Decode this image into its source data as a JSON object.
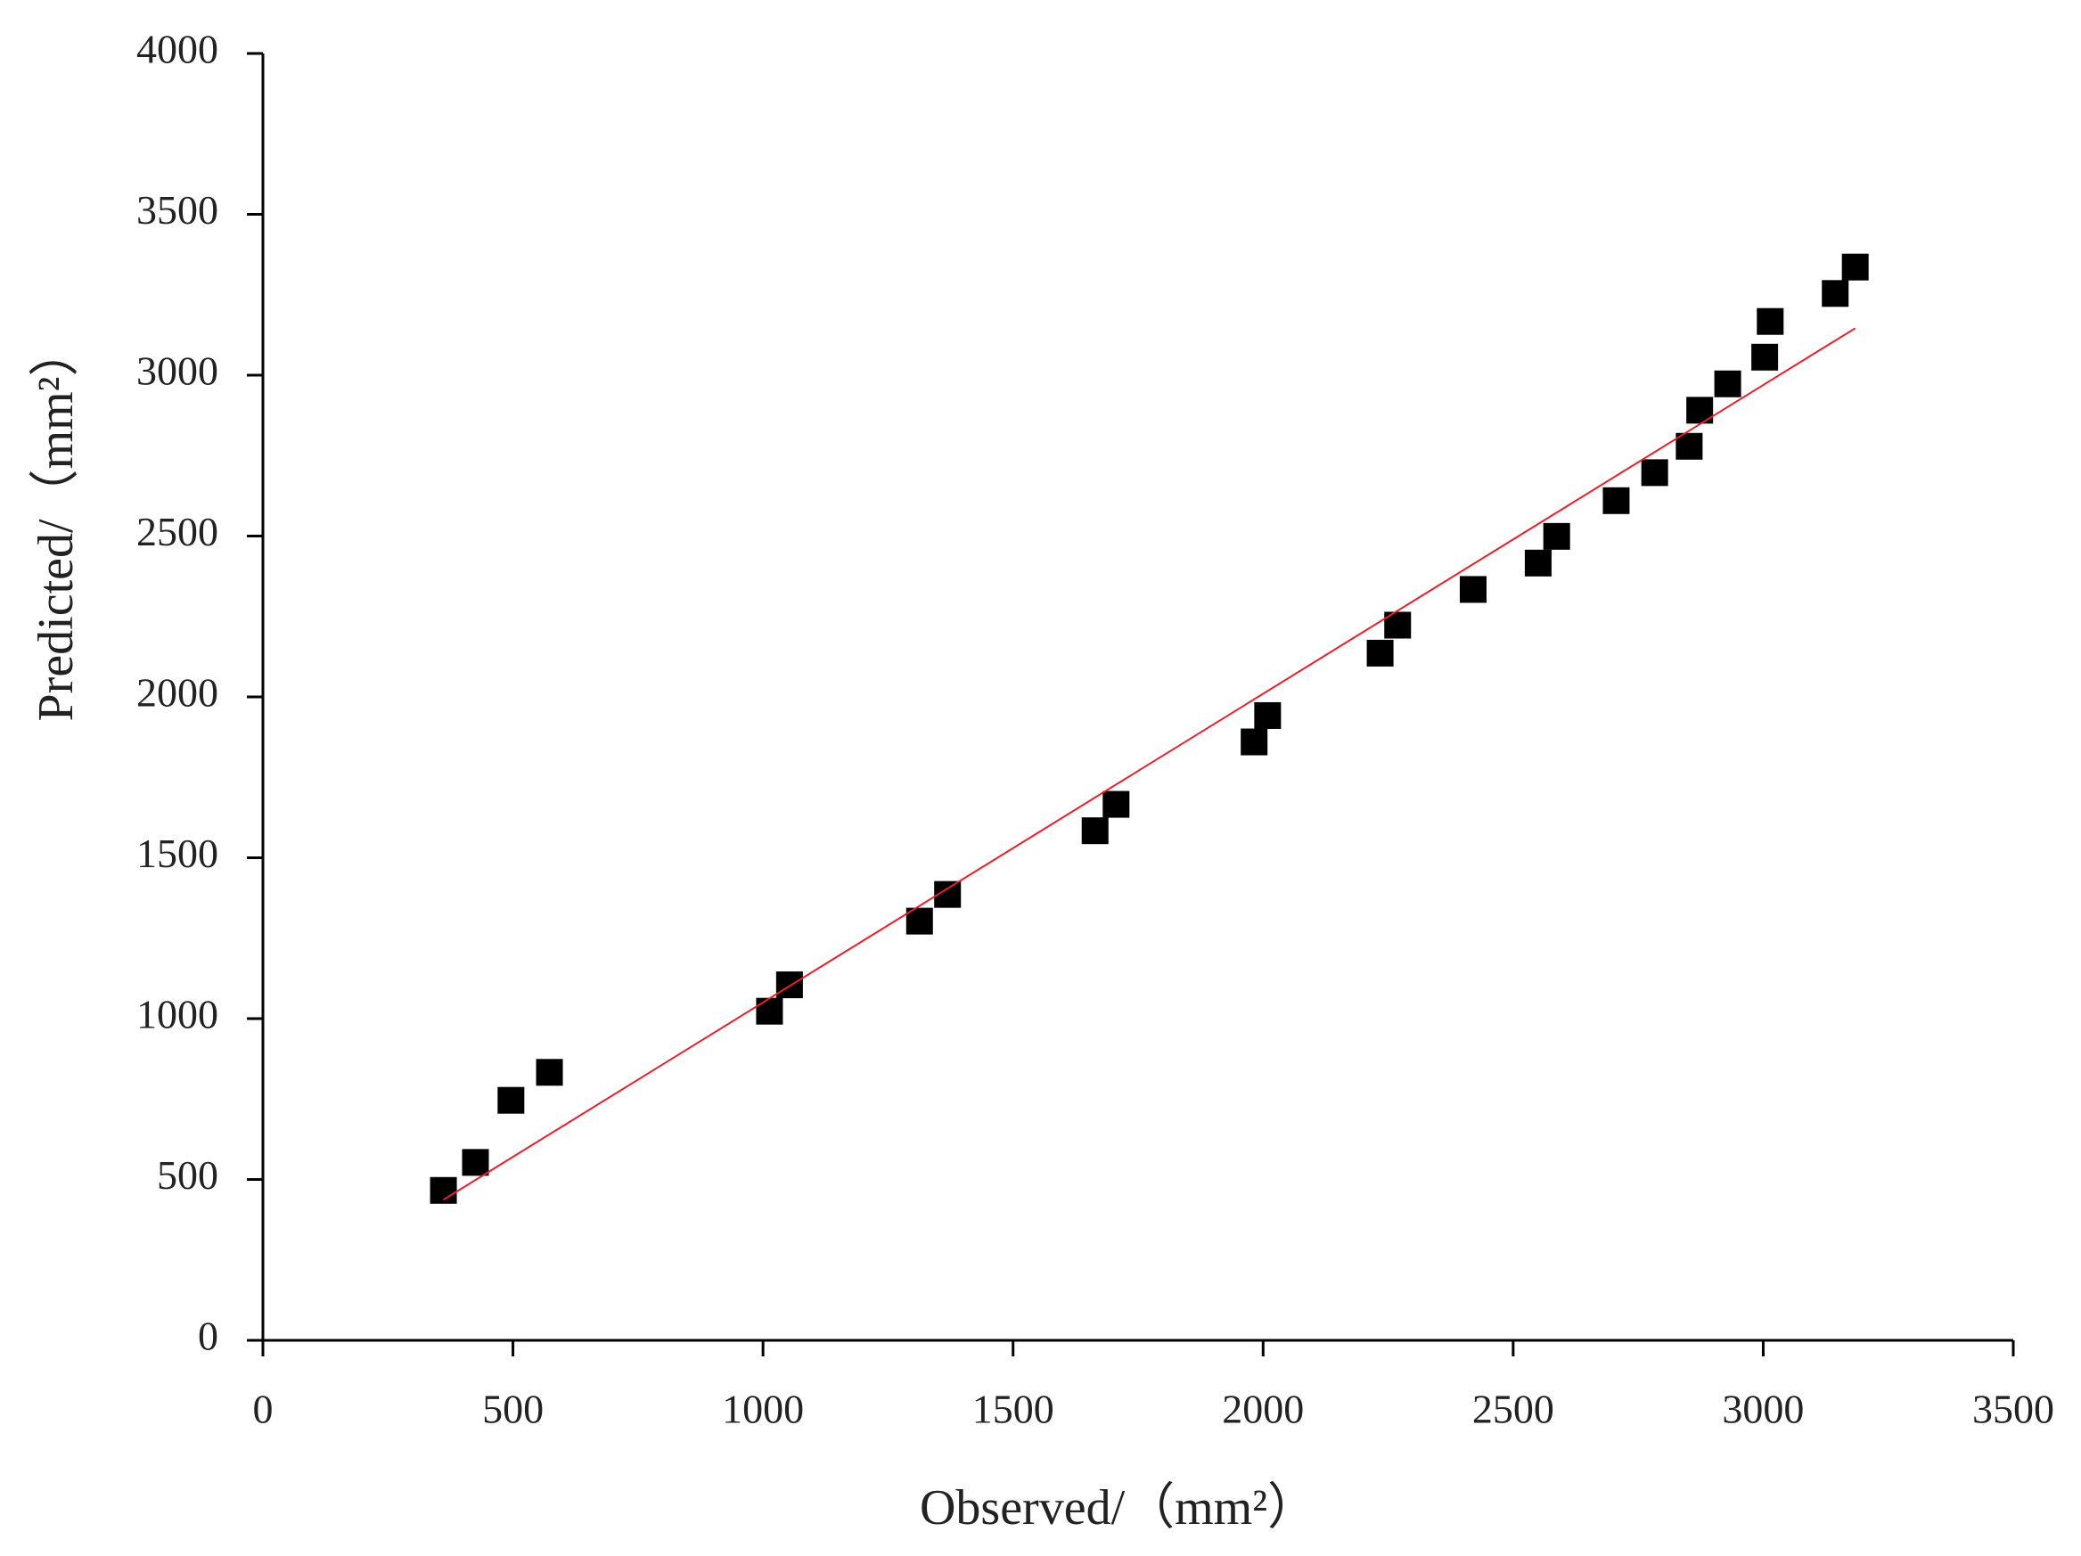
{
  "chart_data": {
    "type": "scatter",
    "x_label": "Observed/（mm²）",
    "y_label": "Predicted/（mm²）",
    "xlim": [
      0,
      3500
    ],
    "xticks": [
      0,
      500,
      1000,
      1500,
      2000,
      2500,
      3000,
      3500
    ],
    "ylim": [
      0,
      4000
    ],
    "yticks": [
      0,
      500,
      1000,
      1500,
      2000,
      2500,
      3000,
      3500,
      4000
    ],
    "series": [
      {
        "type": "scatter",
        "color": "#000000",
        "x": [
          361,
          425,
          496,
          573,
          1013,
          1053,
          1313,
          1369,
          1664,
          1706,
          1982,
          2009,
          2234,
          2269,
          2420,
          2550,
          2587,
          2706,
          2783,
          2852,
          2873,
          2929,
          3003,
          3014,
          3144,
          3184
        ],
        "values": [
          466,
          553,
          746,
          833,
          1023,
          1105,
          1303,
          1386,
          1584,
          1666,
          1860,
          1942,
          2136,
          2223,
          2334,
          2416,
          2499,
          2610,
          2697,
          2779,
          2891,
          2973,
          3056,
          3167,
          3254,
          3336
        ]
      },
      {
        "type": "line",
        "color": "#e8202a",
        "x": [
          361,
          3184
        ],
        "values": [
          437,
          3146
        ]
      }
    ]
  }
}
